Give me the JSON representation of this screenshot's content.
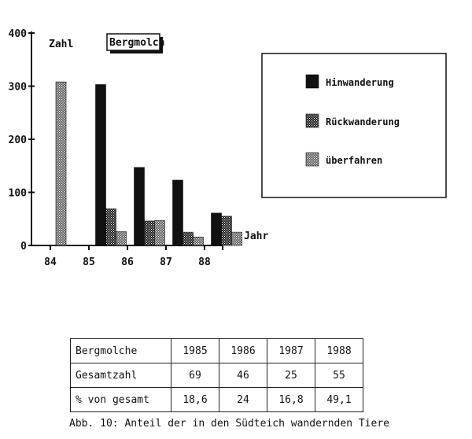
{
  "chart_data": {
    "type": "bar",
    "title": "Bergmolch",
    "ylabel": "Zahl",
    "xlabel": "Jahr",
    "categories": [
      "84",
      "85",
      "86",
      "87",
      "88"
    ],
    "yticks": [
      "400",
      "300",
      "200",
      "100",
      "0"
    ],
    "ylim": [
      0,
      400
    ],
    "series": [
      {
        "name": "Hinwanderung",
        "color": "#111111",
        "pattern": "solid",
        "values": [
          null,
          303,
          147,
          123,
          61
        ]
      },
      {
        "name": "Rückwanderung",
        "color": "#333333",
        "pattern": "dense-dots",
        "values": [
          null,
          69,
          46,
          25,
          55
        ]
      },
      {
        "name": "überfahren",
        "color": "#777777",
        "pattern": "light-dots",
        "values": [
          308,
          26,
          47,
          16,
          25
        ]
      }
    ],
    "legend_position": "right"
  },
  "table": {
    "rows": [
      [
        "Bergmolche",
        "1985",
        "1986",
        "1987",
        "1988"
      ],
      [
        "Gesamtzahl",
        "69",
        "46",
        "25",
        "55"
      ],
      [
        "% von gesamt",
        "18,6",
        "24",
        "16,8",
        "49,1"
      ]
    ]
  },
  "caption": "Abb. 10: Anteil der in den Südteich wandernden Tiere"
}
